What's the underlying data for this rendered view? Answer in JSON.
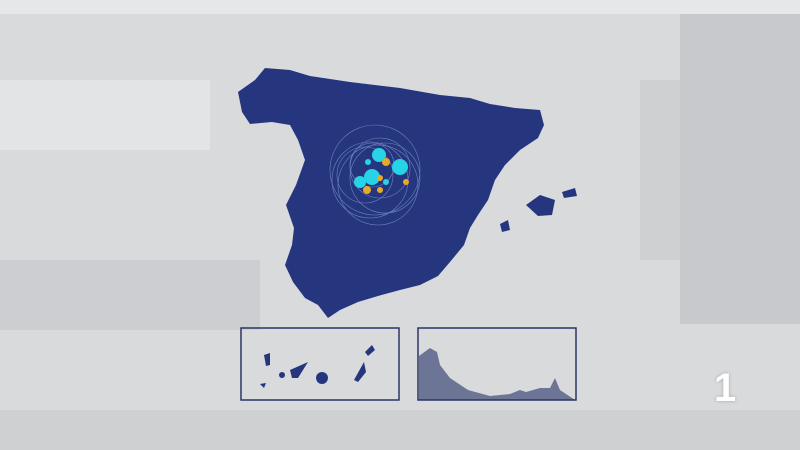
{
  "map": {
    "land_color": "#25367f",
    "inset_land_color": "#6c7596",
    "marker_colors": {
      "large": "#27d3e6",
      "small": "#e7a92a"
    },
    "insets": [
      "canary-islands",
      "ceuta-melilla-coast"
    ]
  },
  "channel_logo": {
    "text": "1"
  }
}
